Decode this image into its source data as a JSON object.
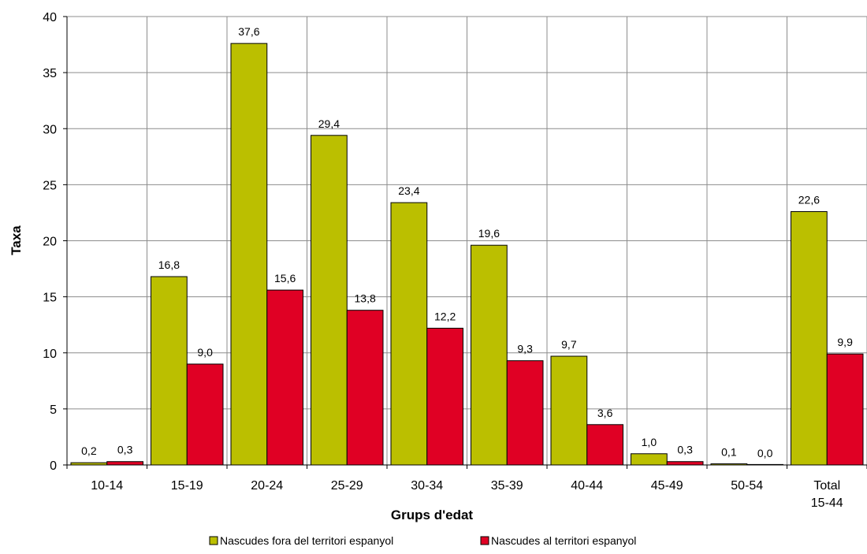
{
  "chart_data": {
    "type": "bar",
    "xlabel": "Grups d'edat",
    "ylabel": "Taxa",
    "ylim": [
      0,
      40
    ],
    "yticks": [
      "0",
      "5",
      "10",
      "15",
      "20",
      "25",
      "30",
      "35",
      "40"
    ],
    "ytick_values": [
      0,
      5,
      10,
      15,
      20,
      25,
      30,
      35,
      40
    ],
    "grid": true,
    "legend_position": "bottom",
    "categories": [
      [
        "10-14"
      ],
      [
        "15-19"
      ],
      [
        "20-24"
      ],
      [
        "25-29"
      ],
      [
        "30-34"
      ],
      [
        "35-39"
      ],
      [
        "40-44"
      ],
      [
        "45-49"
      ],
      [
        "50-54"
      ],
      [
        "Total",
        "15-44"
      ]
    ],
    "series": [
      {
        "name": "Nascudes fora del territori espanyol",
        "color": "#bbbf00",
        "values": [
          0.2,
          16.8,
          37.6,
          29.4,
          23.4,
          19.6,
          9.7,
          1.0,
          0.1,
          22.6
        ],
        "labels": [
          "0,2",
          "16,8",
          "37,6",
          "29,4",
          "23,4",
          "19,6",
          "9,7",
          "1,0",
          "0,1",
          "22,6"
        ]
      },
      {
        "name": "Nascudes al territori espanyol",
        "color": "#e00024",
        "values": [
          0.3,
          9.0,
          15.6,
          13.8,
          12.2,
          9.3,
          3.6,
          0.3,
          0.0,
          9.9
        ],
        "labels": [
          "0,3",
          "9,0",
          "15,6",
          "13,8",
          "12,2",
          "9,3",
          "3,6",
          "0,3",
          "0,0",
          "9,9"
        ]
      }
    ]
  }
}
